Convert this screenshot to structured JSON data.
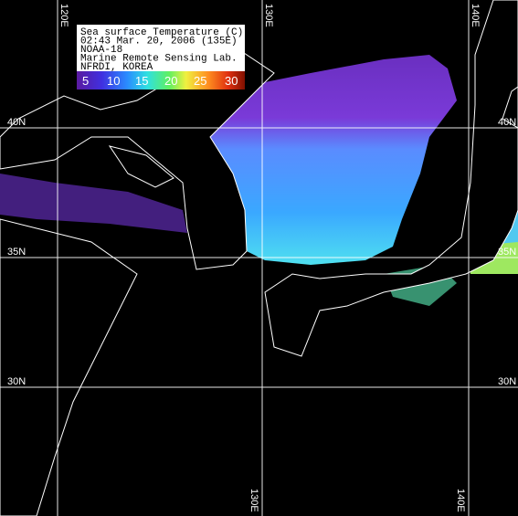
{
  "legend": {
    "lines": [
      "Sea surface Temperature (C)",
      "02:43 Mar. 20, 2006 (135E)",
      "NOAA-18",
      "Marine Remote Sensing Lab.",
      "NFRDI, KOREA"
    ],
    "scale_labels": [
      "5",
      "10",
      "15",
      "20",
      "25",
      "30"
    ]
  },
  "graticule": {
    "top_lon": [
      "120E",
      "130E",
      "140E"
    ],
    "bottom_lon": [
      "130E",
      "140E"
    ],
    "left_lat": [
      "40N",
      "35N",
      "30N"
    ],
    "right_lat": [
      "40N",
      "35N",
      "30N"
    ]
  }
}
